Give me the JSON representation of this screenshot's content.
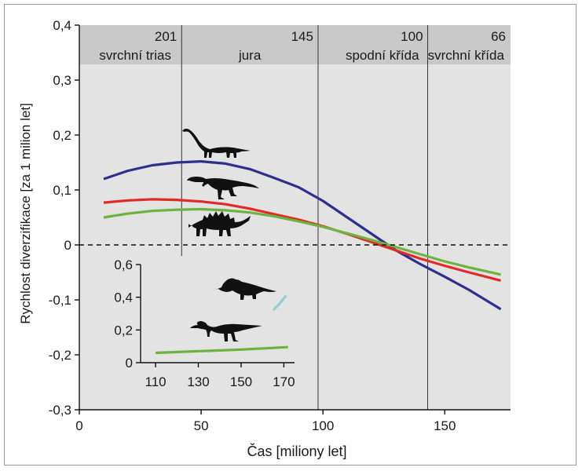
{
  "chart_data": {
    "type": "line",
    "xlabel": "Čas [miliony let]",
    "ylabel": "Rychlost diverzifikace [za 1 milion let]",
    "xlim": [
      0,
      177
    ],
    "ylim": [
      -0.3,
      0.4
    ],
    "x_ticks": [
      0,
      50,
      100,
      150
    ],
    "y_ticks": [
      -0.3,
      -0.2,
      -0.1,
      0,
      0.1,
      0.2,
      0.3,
      0.4
    ],
    "y_tick_labels": [
      "-0,3",
      "-0,2",
      "-0,1",
      "0",
      "0,1",
      "0,2",
      "0,3",
      "0,4"
    ],
    "x_tick_labels": [
      "0",
      "50",
      "100",
      "150"
    ],
    "zero_line": true,
    "periods": [
      {
        "name": "svrchní trias",
        "age": "201",
        "x_start": 0,
        "x_end": 42
      },
      {
        "name": "jura",
        "age": "145",
        "x_start": 42,
        "x_end": 98
      },
      {
        "name": "spodní křída",
        "age": "100",
        "x_start": 98,
        "x_end": 143
      },
      {
        "name": "svrchní křída",
        "age": "66",
        "x_start": 143,
        "x_end": 177
      }
    ],
    "series": [
      {
        "color": "#2e2f8f",
        "points": [
          [
            10,
            0.12
          ],
          [
            20,
            0.135
          ],
          [
            30,
            0.145
          ],
          [
            40,
            0.15
          ],
          [
            50,
            0.152
          ],
          [
            60,
            0.148
          ],
          [
            70,
            0.138
          ],
          [
            80,
            0.122
          ],
          [
            90,
            0.105
          ],
          [
            100,
            0.08
          ],
          [
            110,
            0.05
          ],
          [
            120,
            0.02
          ],
          [
            130,
            -0.01
          ],
          [
            140,
            -0.035
          ],
          [
            150,
            -0.058
          ],
          [
            160,
            -0.082
          ],
          [
            173,
            -0.117
          ]
        ]
      },
      {
        "color": "#e02b26",
        "points": [
          [
            10,
            0.077
          ],
          [
            20,
            0.081
          ],
          [
            30,
            0.083
          ],
          [
            40,
            0.082
          ],
          [
            50,
            0.079
          ],
          [
            60,
            0.074
          ],
          [
            70,
            0.066
          ],
          [
            80,
            0.056
          ],
          [
            90,
            0.046
          ],
          [
            100,
            0.034
          ],
          [
            110,
            0.02
          ],
          [
            120,
            0.005
          ],
          [
            130,
            -0.01
          ],
          [
            140,
            -0.025
          ],
          [
            150,
            -0.038
          ],
          [
            160,
            -0.05
          ],
          [
            173,
            -0.065
          ]
        ]
      },
      {
        "color": "#6db33f",
        "points": [
          [
            10,
            0.05
          ],
          [
            20,
            0.057
          ],
          [
            30,
            0.062
          ],
          [
            40,
            0.064
          ],
          [
            50,
            0.065
          ],
          [
            60,
            0.063
          ],
          [
            70,
            0.059
          ],
          [
            80,
            0.052
          ],
          [
            90,
            0.043
          ],
          [
            100,
            0.033
          ],
          [
            110,
            0.021
          ],
          [
            120,
            0.009
          ],
          [
            130,
            -0.004
          ],
          [
            140,
            -0.017
          ],
          [
            150,
            -0.03
          ],
          [
            160,
            -0.041
          ],
          [
            173,
            -0.054
          ]
        ]
      }
    ],
    "inset": {
      "xlim": [
        103,
        175
      ],
      "ylim": [
        0,
        0.6
      ],
      "x_ticks": [
        110,
        130,
        150,
        170
      ],
      "y_ticks": [
        0,
        0.2,
        0.4,
        0.6
      ],
      "y_tick_labels": [
        "0",
        "0,2",
        "0,4",
        "0,6"
      ],
      "x_tick_labels": [
        "110",
        "130",
        "150",
        "170"
      ],
      "series": [
        {
          "color": "#6db33f",
          "points": [
            [
              110,
              0.06
            ],
            [
              130,
              0.07
            ],
            [
              150,
              0.08
            ],
            [
              172,
              0.095
            ]
          ]
        },
        {
          "color": "#8fd0d0",
          "points": [
            [
              165,
              0.32
            ],
            [
              168,
              0.36
            ],
            [
              171,
              0.41
            ]
          ]
        }
      ]
    },
    "silhouettes": [
      "sauropod-icon",
      "theropod-icon",
      "stegosaur-icon",
      "ceratopsian-icon",
      "hadrosaur-icon"
    ]
  }
}
